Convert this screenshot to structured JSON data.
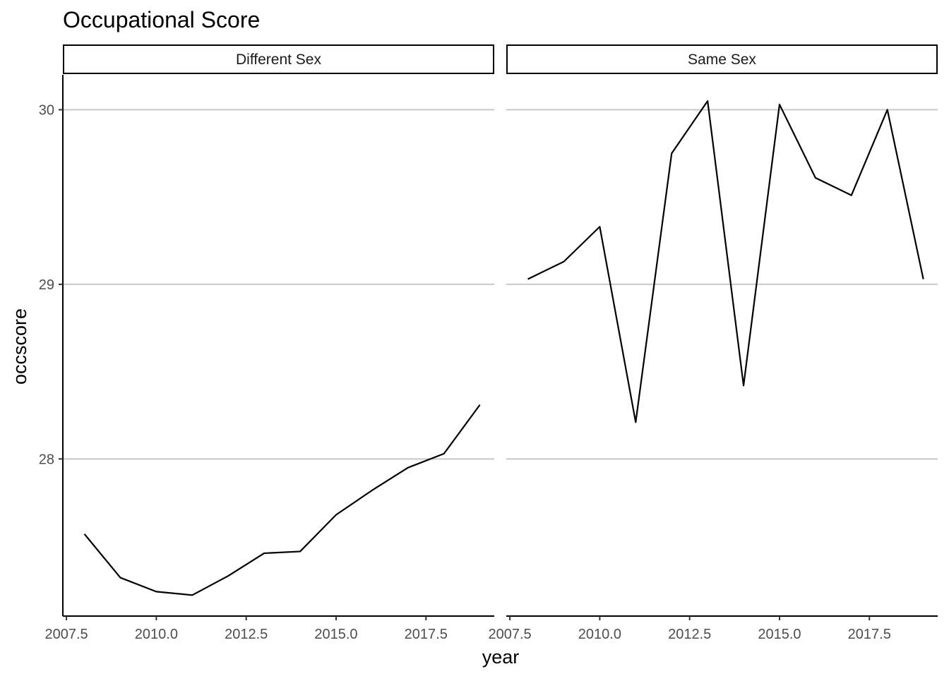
{
  "chart_data": {
    "type": "line",
    "title": "Occupational Score",
    "xlabel": "year",
    "ylabel": "occscore",
    "xlim": [
      2007.4,
      2019.4
    ],
    "ylim": [
      27.1,
      30.2
    ],
    "xticks": [
      2007.5,
      2010.0,
      2012.5,
      2015.0,
      2017.5
    ],
    "xtick_labels": [
      "2007.5",
      "2010.0",
      "2012.5",
      "2015.0",
      "2017.5"
    ],
    "yticks": [
      28,
      29,
      30
    ],
    "ytick_labels": [
      "28",
      "29",
      "30"
    ],
    "grid": "horizontal major",
    "series_color": "#000000",
    "grid_color": "#c8c8c8",
    "facets": [
      {
        "label": "Different Sex",
        "x": [
          2008,
          2009,
          2010,
          2011,
          2012,
          2013,
          2014,
          2015,
          2016,
          2017,
          2018,
          2019
        ],
        "y": [
          27.57,
          27.32,
          27.24,
          27.22,
          27.33,
          27.46,
          27.47,
          27.68,
          27.82,
          27.95,
          28.03,
          28.31
        ]
      },
      {
        "label": "Same Sex",
        "x": [
          2008,
          2009,
          2010,
          2011,
          2012,
          2013,
          2014,
          2015,
          2016,
          2017,
          2018,
          2019
        ],
        "y": [
          29.03,
          29.13,
          29.33,
          28.21,
          29.75,
          30.05,
          28.42,
          30.03,
          29.61,
          29.51,
          30.0,
          29.03
        ]
      }
    ]
  }
}
